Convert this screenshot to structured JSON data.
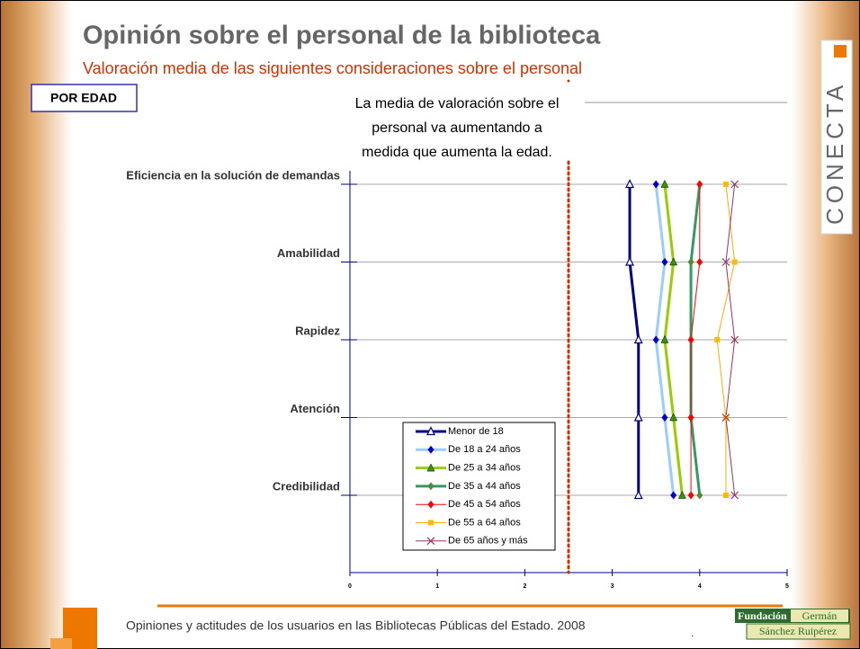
{
  "slide": {
    "title": "Opinión sobre el personal de la biblioteca",
    "subtitle": "Valoración media de las siguientes consideraciones sobre el personal",
    "tag": "POR EDAD",
    "footer": "Opiniones y actitudes de los usuarios en las Bibliotecas Públicas del Estado. 2008",
    "footer_mark": ".",
    "brand": "CONECTA",
    "logo": [
      "Fundación",
      "Germán",
      "Sánchez Ruipérez"
    ]
  },
  "chart_data": {
    "type": "line",
    "orientation": "horizontal",
    "annotation": [
      "La media de valoración sobre el",
      "personal va aumentando a",
      "medida que aumenta la edad."
    ],
    "categories": [
      "Eficiencia en la solución de demandas",
      "Amabilidad",
      "Rapidez",
      "Atención",
      "Credibilidad"
    ],
    "xlim": [
      0,
      5
    ],
    "xticks": [
      0,
      1,
      2,
      3,
      4,
      5
    ],
    "reference_line": 2.5,
    "reference_color": "#cc3300",
    "grid": true,
    "series": [
      {
        "name": "Menor de 18",
        "color": "#000080",
        "marker": "triangle-open",
        "width": 3,
        "values": [
          3.2,
          3.2,
          3.3,
          3.3,
          3.3
        ]
      },
      {
        "name": "De 18 a 24 años",
        "color": "#99ccff",
        "marker": "diamond",
        "marker_color": "#0000cc",
        "width": 3,
        "values": [
          3.5,
          3.6,
          3.5,
          3.6,
          3.7
        ]
      },
      {
        "name": "De 25 a 34 años",
        "color": "#99cc00",
        "marker": "triangle",
        "marker_color": "#339900",
        "width": 3,
        "values": [
          3.6,
          3.7,
          3.6,
          3.7,
          3.8
        ]
      },
      {
        "name": "De 35 a 44 años",
        "color": "#339966",
        "marker": "diamond",
        "marker_color": "#558833",
        "width": 3,
        "values": [
          4.0,
          3.9,
          3.9,
          3.9,
          4.0
        ]
      },
      {
        "name": "De 45 a 54 años",
        "color": "#ff0000",
        "marker": "diamond",
        "width": 1,
        "values": [
          4.0,
          4.0,
          3.9,
          3.9,
          3.9
        ]
      },
      {
        "name": "De 55 a 64 años",
        "color": "#ffaa00",
        "marker": "square",
        "marker_color": "#ffbb00",
        "width": 1,
        "values": [
          4.3,
          4.4,
          4.2,
          4.3,
          4.3
        ]
      },
      {
        "name": "De 65 años y más",
        "color": "#993366",
        "marker": "x",
        "width": 1,
        "values": [
          4.4,
          4.3,
          4.4,
          4.3,
          4.4
        ]
      }
    ]
  }
}
